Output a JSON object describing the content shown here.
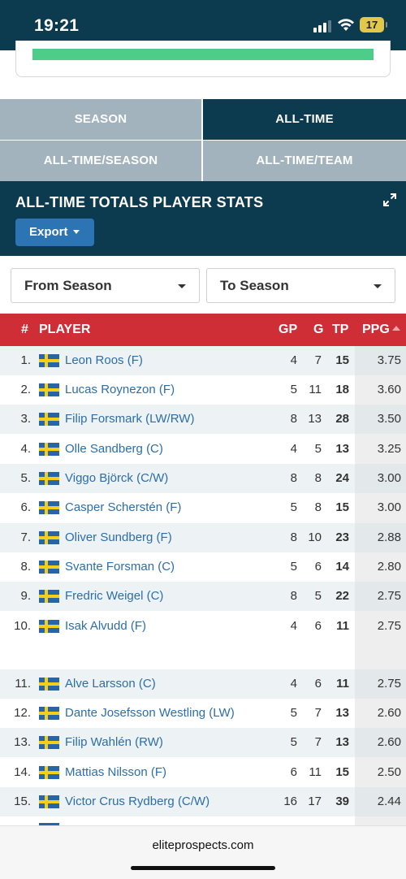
{
  "status_bar": {
    "time": "19:21",
    "battery": "17"
  },
  "tabs": [
    {
      "label": "SEASON",
      "active": false
    },
    {
      "label": "ALL-TIME",
      "active": true
    },
    {
      "label": "ALL-TIME/SEASON",
      "active": false
    },
    {
      "label": "ALL-TIME/TEAM",
      "active": false
    }
  ],
  "stats": {
    "title": "ALL-TIME TOTALS PLAYER STATS",
    "export_label": "Export"
  },
  "filters": {
    "from_season": "From Season",
    "to_season": "To Season"
  },
  "table": {
    "headers": {
      "rank": "#",
      "player": "PLAYER",
      "gp": "GP",
      "g": "G",
      "tp": "TP",
      "ppg": "PPG"
    },
    "rows": [
      {
        "rank": "1.",
        "name": "Leon Roos (F)",
        "gp": "4",
        "g": "7",
        "tp": "15",
        "ppg": "3.75"
      },
      {
        "rank": "2.",
        "name": "Lucas Roynezon (F)",
        "gp": "5",
        "g": "11",
        "tp": "18",
        "ppg": "3.60"
      },
      {
        "rank": "3.",
        "name": "Filip Forsmark (LW/RW)",
        "gp": "8",
        "g": "13",
        "tp": "28",
        "ppg": "3.50"
      },
      {
        "rank": "4.",
        "name": "Olle Sandberg (C)",
        "gp": "4",
        "g": "5",
        "tp": "13",
        "ppg": "3.25"
      },
      {
        "rank": "5.",
        "name": "Viggo Björck (C/W)",
        "gp": "8",
        "g": "8",
        "tp": "24",
        "ppg": "3.00"
      },
      {
        "rank": "6.",
        "name": "Casper Scherstén (F)",
        "gp": "5",
        "g": "8",
        "tp": "15",
        "ppg": "3.00"
      },
      {
        "rank": "7.",
        "name": "Oliver Sundberg (F)",
        "gp": "8",
        "g": "10",
        "tp": "23",
        "ppg": "2.88"
      },
      {
        "rank": "8.",
        "name": "Svante Forsman (C)",
        "gp": "5",
        "g": "6",
        "tp": "14",
        "ppg": "2.80"
      },
      {
        "rank": "9.",
        "name": "Fredric Weigel (C)",
        "gp": "8",
        "g": "5",
        "tp": "22",
        "ppg": "2.75"
      },
      {
        "rank": "10.",
        "name": "Isak Alvudd (F)",
        "gp": "4",
        "g": "6",
        "tp": "11",
        "ppg": "2.75"
      },
      {
        "rank": "11.",
        "name": "Alve Larsson (C)",
        "gp": "4",
        "g": "6",
        "tp": "11",
        "ppg": "2.75"
      },
      {
        "rank": "12.",
        "name": "Dante Josefsson Westling (LW)",
        "gp": "5",
        "g": "7",
        "tp": "13",
        "ppg": "2.60"
      },
      {
        "rank": "13.",
        "name": "Filip Wahlén (RW)",
        "gp": "5",
        "g": "7",
        "tp": "13",
        "ppg": "2.60"
      },
      {
        "rank": "14.",
        "name": "Mattias Nilsson (F)",
        "gp": "6",
        "g": "11",
        "tp": "15",
        "ppg": "2.50"
      },
      {
        "rank": "15.",
        "name": "Victor Crus Rydberg (C/W)",
        "gp": "16",
        "g": "17",
        "tp": "39",
        "ppg": "2.44"
      }
    ]
  },
  "browser": {
    "url": "eliteprospects.com"
  },
  "colors": {
    "navy": "#0c3a4f",
    "red_header": "#cf2e37",
    "link_blue": "#2c6ea8",
    "export_blue": "#2c74b3",
    "progress_green": "#4dcc8a"
  }
}
